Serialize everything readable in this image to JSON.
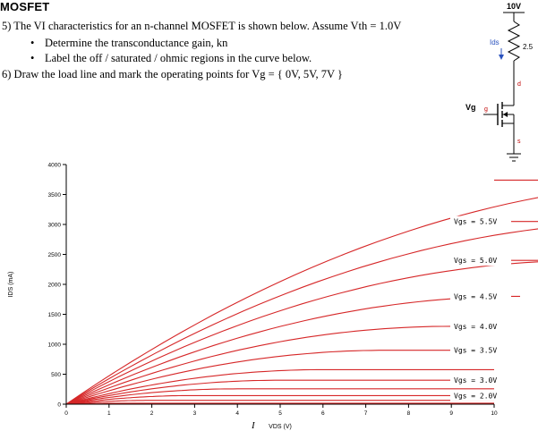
{
  "header": {
    "title": "MOSFET"
  },
  "questions": {
    "q5": {
      "text": "5)  The VI characteristics for an n-channel MOSFET is shown below.  Assume Vth = 1.0V",
      "bullets": [
        "Determine the transconductance gain, kn",
        "Label the off / saturated / ohmic regions in the curve below."
      ]
    },
    "q6": {
      "text": "6)  Draw the load line  and mark the operating points for Vg = { 0V, 5V, 7V }"
    }
  },
  "circuit": {
    "supply": "10V",
    "resistor": "2.5",
    "current": "Ids",
    "gate": "Vg",
    "gate_pin": "g",
    "drain_pin": "d",
    "source_pin": "s",
    "colors": {
      "current": "#2a52be",
      "pins": "#c00000"
    }
  },
  "stray_mark": "I",
  "chart_data": {
    "type": "line",
    "xlabel": "VDS (V)",
    "ylabel": "IDS (mA)",
    "xlim": [
      0,
      10
    ],
    "ylim": [
      0,
      4000
    ],
    "xticks": [
      "0",
      "1",
      "2",
      "3",
      "4",
      "5",
      "6",
      "7",
      "8",
      "9",
      "10"
    ],
    "yticks": [
      "0",
      "500",
      "1000",
      "1500",
      "2000",
      "2500",
      "3000",
      "3500",
      "4000"
    ],
    "curve_color": "#d62728",
    "series": [
      {
        "name": "",
        "isat": 16
      },
      {
        "name": "",
        "isat": 64
      },
      {
        "name": "Vgs = 2.0V",
        "isat": 144
      },
      {
        "name": "",
        "isat": 256
      },
      {
        "name": "Vgs = 3.0V",
        "isat": 400
      },
      {
        "name": "",
        "isat": 576
      },
      {
        "name": "Vgs = 3.5V",
        "isat": 900
      },
      {
        "name": "Vgs = 4.0V",
        "isat": 1300
      },
      {
        "name": "Vgs = 4.5V",
        "isat": 1800
      },
      {
        "name": "Vgs = 5.0V",
        "isat": 2400
      },
      {
        "name": "Vgs = 5.5V",
        "isat": 3050
      },
      {
        "name": "",
        "isat": 3740
      }
    ]
  }
}
